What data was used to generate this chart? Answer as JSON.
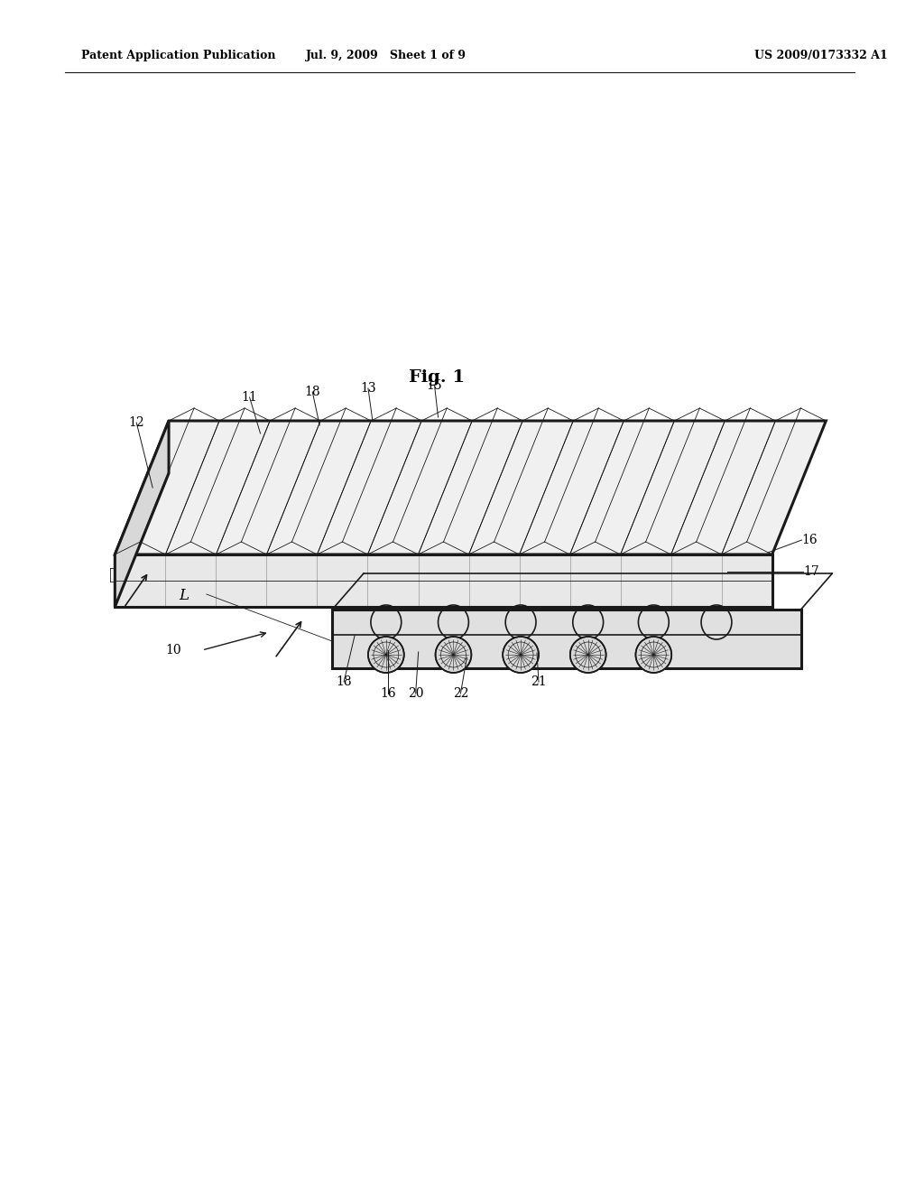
{
  "bg": "#ffffff",
  "lc": "#1a1a1a",
  "header_left": "Patent Application Publication",
  "header_mid": "Jul. 9, 2009   Sheet 1 of 9",
  "header_right": "US 2009/0173332 A1",
  "fig_title": "Fig. 1",
  "thin": 0.6,
  "med": 1.2,
  "thick": 2.2,
  "n_ribs": 13,
  "top_face_color": "#f0f0f0",
  "front_face_color": "#e8e8e8",
  "side_face_color": "#d8d8d8",
  "low_face_color": "#e0e0e0",
  "knob_outer": "#b8b8b8",
  "knob_inner": "#808080"
}
